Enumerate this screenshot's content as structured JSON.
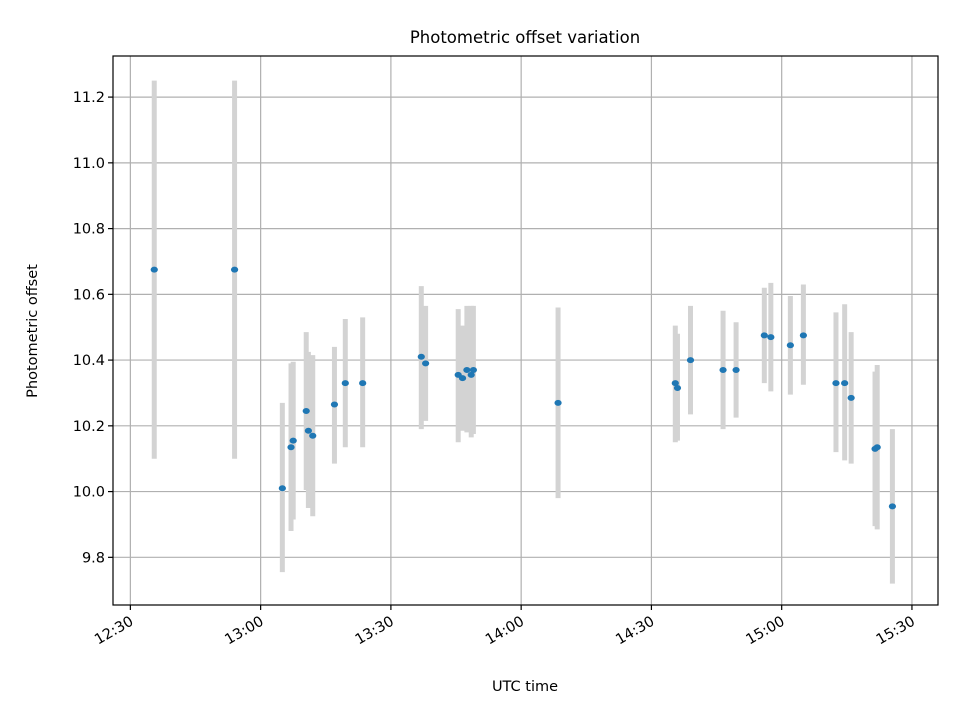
{
  "chart_data": {
    "type": "scatter",
    "title": "Photometric offset variation",
    "xlabel": "UTC time",
    "ylabel": "Photometric offset",
    "xlim": [
      "12:26",
      "15:36"
    ],
    "ylim": [
      9.655,
      11.325
    ],
    "x_ticks": [
      "12:30",
      "13:00",
      "13:30",
      "14:00",
      "14:30",
      "15:00",
      "15:30"
    ],
    "y_ticks": [
      9.8,
      10.0,
      10.2,
      10.4,
      10.6,
      10.8,
      11.0,
      11.2
    ],
    "grid": true,
    "colors": {
      "marker": "#1f77b4",
      "errorbar": "#d3d3d3"
    },
    "points": [
      {
        "time": "12:35:30",
        "y": 10.675,
        "low": 10.1,
        "high": 11.25
      },
      {
        "time": "12:54:00",
        "y": 10.675,
        "low": 10.1,
        "high": 11.25
      },
      {
        "time": "13:05:00",
        "y": 10.01,
        "low": 9.755,
        "high": 10.27
      },
      {
        "time": "13:07:00",
        "y": 10.135,
        "low": 9.88,
        "high": 10.39
      },
      {
        "time": "13:07:30",
        "y": 10.155,
        "low": 9.915,
        "high": 10.395
      },
      {
        "time": "13:10:30",
        "y": 10.245,
        "low": 10.005,
        "high": 10.485
      },
      {
        "time": "13:11:00",
        "y": 10.185,
        "low": 9.95,
        "high": 10.425
      },
      {
        "time": "13:12:00",
        "y": 10.17,
        "low": 9.925,
        "high": 10.415
      },
      {
        "time": "13:17:00",
        "y": 10.265,
        "low": 10.085,
        "high": 10.44
      },
      {
        "time": "13:19:30",
        "y": 10.33,
        "low": 10.135,
        "high": 10.525
      },
      {
        "time": "13:23:30",
        "y": 10.33,
        "low": 10.135,
        "high": 10.53
      },
      {
        "time": "13:37:00",
        "y": 10.41,
        "low": 10.19,
        "high": 10.625
      },
      {
        "time": "13:38:00",
        "y": 10.39,
        "low": 10.215,
        "high": 10.565
      },
      {
        "time": "13:45:30",
        "y": 10.355,
        "low": 10.15,
        "high": 10.555
      },
      {
        "time": "13:46:30",
        "y": 10.345,
        "low": 10.185,
        "high": 10.505
      },
      {
        "time": "13:47:30",
        "y": 10.37,
        "low": 10.18,
        "high": 10.565
      },
      {
        "time": "13:48:30",
        "y": 10.355,
        "low": 10.165,
        "high": 10.565
      },
      {
        "time": "13:49:00",
        "y": 10.37,
        "low": 10.175,
        "high": 10.565
      },
      {
        "time": "14:08:30",
        "y": 10.27,
        "low": 9.98,
        "high": 10.56
      },
      {
        "time": "14:35:30",
        "y": 10.33,
        "low": 10.15,
        "high": 10.505
      },
      {
        "time": "14:36:00",
        "y": 10.315,
        "low": 10.155,
        "high": 10.48
      },
      {
        "time": "14:39:00",
        "y": 10.4,
        "low": 10.235,
        "high": 10.565
      },
      {
        "time": "14:46:30",
        "y": 10.37,
        "low": 10.19,
        "high": 10.55
      },
      {
        "time": "14:49:30",
        "y": 10.37,
        "low": 10.225,
        "high": 10.515
      },
      {
        "time": "14:56:00",
        "y": 10.475,
        "low": 10.33,
        "high": 10.62
      },
      {
        "time": "14:57:30",
        "y": 10.47,
        "low": 10.305,
        "high": 10.635
      },
      {
        "time": "15:02:00",
        "y": 10.445,
        "low": 10.295,
        "high": 10.595
      },
      {
        "time": "15:05:00",
        "y": 10.475,
        "low": 10.325,
        "high": 10.63
      },
      {
        "time": "15:12:30",
        "y": 10.33,
        "low": 10.12,
        "high": 10.545
      },
      {
        "time": "15:14:30",
        "y": 10.33,
        "low": 10.095,
        "high": 10.57
      },
      {
        "time": "15:16:00",
        "y": 10.285,
        "low": 10.085,
        "high": 10.485
      },
      {
        "time": "15:21:30",
        "y": 10.13,
        "low": 9.895,
        "high": 10.365
      },
      {
        "time": "15:22:00",
        "y": 10.135,
        "low": 9.885,
        "high": 10.385
      },
      {
        "time": "15:25:30",
        "y": 9.955,
        "low": 9.72,
        "high": 10.19
      }
    ]
  }
}
